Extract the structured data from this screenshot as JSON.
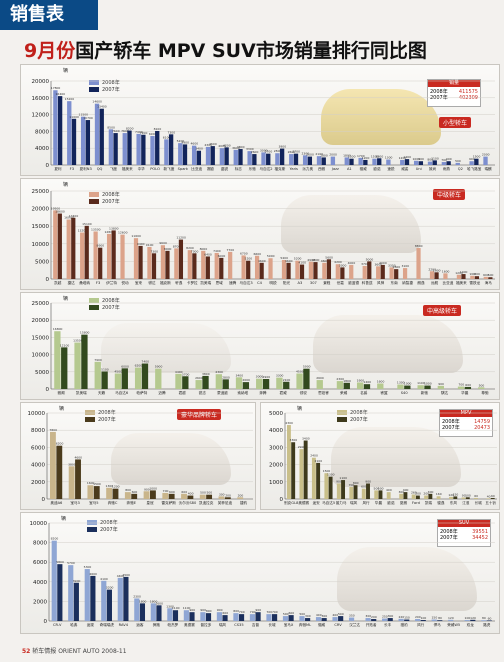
{
  "header": {
    "section_tag": "销售表",
    "title_red": "9月份",
    "title_rest": "国产轿车 MPV SUV市场销量排行同比图"
  },
  "footer": {
    "page_num": "52",
    "text": "轿车情报 ORIENT AUTO 2008-11"
  },
  "colors": {
    "y2008": "#7d8fcf",
    "y2007": "#12245a",
    "accent_red": "#c92a21",
    "tag_blue": "#0b4a86"
  },
  "legend": {
    "y2008": "2008年",
    "y2007": "2007年"
  },
  "axis_unit": "辆",
  "panels": {
    "small": {
      "badge": "小型轿车",
      "sales_box": {
        "title": "销量",
        "rows": [
          {
            "label": "2008年",
            "value": "411575"
          },
          {
            "label": "2007年",
            "value": "402309"
          }
        ]
      }
    },
    "compact": {
      "badge": "中级轿车"
    },
    "midlarge": {
      "badge": "中高级轿车"
    },
    "luxury": {
      "badge": "豪华品牌轿车"
    },
    "mpv": {
      "sales_box": {
        "title": "MPV",
        "rows": [
          {
            "label": "2008年",
            "value": "14759"
          },
          {
            "label": "2007年",
            "value": "20473"
          }
        ]
      }
    },
    "suv": {
      "sales_box": {
        "title": "SUV",
        "rows": [
          {
            "label": "2008年",
            "value": "39551"
          },
          {
            "label": "2007年",
            "value": "34452"
          }
        ]
      }
    }
  },
  "chart_data": [
    {
      "id": "small",
      "type": "bar",
      "ylim": [
        0,
        20000
      ],
      "yticks": [
        0,
        4000,
        8000,
        12000,
        16000,
        20000
      ],
      "categories": [
        "夏利",
        "F3",
        "夏利N3",
        "QQ",
        "飞度",
        "福美来",
        "中华",
        "POLO",
        "新飞度",
        "Spark",
        "比亚迪",
        "赛欧",
        "晶锐",
        "标志",
        "乐驰",
        "马自达2",
        "福克斯",
        "Yaris",
        "派力奥",
        "西雅",
        "Jazz",
        "A1",
        "骊威",
        "欧诺",
        "速锐",
        "威姿",
        "Uni",
        "致尚",
        "雨燕",
        "Q2",
        "哈飞路宝",
        "瑞麒"
      ],
      "series": [
        {
          "name": "2008年",
          "values": [
            17800,
            15200,
            11500,
            14600,
            8500,
            7600,
            7400,
            6900,
            6100,
            5200,
            4600,
            4300,
            4000,
            3600,
            3300,
            3000,
            2800,
            2600,
            2300,
            2100,
            2000,
            1800,
            1700,
            1500,
            1300,
            1200,
            1000,
            800,
            700,
            500,
            900,
            2000
          ]
        },
        {
          "name": "2007年",
          "values": [
            16400,
            11000,
            10700,
            13400,
            7600,
            8200,
            7200,
            8100,
            7300,
            4900,
            3400,
            4500,
            4200,
            3800,
            2600,
            2700,
            3900,
            2700,
            2000,
            1800,
            0,
            1500,
            1200,
            1600,
            0,
            1400,
            900,
            1100,
            900,
            0,
            1500,
            0
          ]
        }
      ]
    },
    {
      "id": "compact",
      "type": "bar",
      "ylim": [
        0,
        25000
      ],
      "yticks": [
        0,
        5000,
        10000,
        15000,
        20000,
        25000
      ],
      "categories": [
        "凯越",
        "捷达",
        "桑塔纳",
        "F3",
        "伊兰特",
        "悦动",
        "宝来",
        "骐达",
        "福克斯",
        "轩逸",
        "卡罗拉",
        "凯美瑞",
        "思域",
        "速腾",
        "马自达3",
        "C4",
        "明锐",
        "阳光",
        "A3",
        "307",
        "景程",
        "世嘉",
        "欧蓝德",
        "科鲁兹",
        "风神",
        "东南",
        "纳智捷",
        "朗逸",
        "远舰",
        "比亚迪",
        "福美来",
        "雪铁龙",
        "海马"
      ],
      "series": [
        {
          "name": "2008年",
          "values": [
            19500,
            16900,
            13200,
            13500,
            12800,
            12600,
            11600,
            9100,
            9600,
            8700,
            8200,
            8000,
            7400,
            7700,
            6700,
            6600,
            5900,
            5400,
            5200,
            4900,
            4600,
            4200,
            4000,
            3700,
            3600,
            3300,
            3100,
            8800,
            2200,
            1600,
            1200,
            900,
            600
          ]
        },
        {
          "name": "2007年",
          "values": [
            18600,
            17400,
            15100,
            8900,
            13800,
            0,
            9400,
            7300,
            8000,
            11200,
            7300,
            6400,
            6000,
            0,
            5200,
            4600,
            0,
            4600,
            4100,
            4800,
            5600,
            3300,
            0,
            5000,
            4000,
            2800,
            0,
            0,
            1900,
            0,
            1400,
            800,
            500
          ]
        }
      ]
    },
    {
      "id": "midlarge",
      "type": "bar",
      "ylim": [
        0,
        25000
      ],
      "yticks": [
        0,
        5000,
        10000,
        15000,
        20000,
        25000
      ],
      "categories": [
        "雅阁",
        "凯美瑞",
        "天籁",
        "马自达6",
        "帕萨特",
        "迈腾",
        "君越",
        "锐志",
        "蒙迪欧",
        "索纳塔",
        "奔腾",
        "君威",
        "领驭",
        "思铂睿",
        "荣威",
        "名爵",
        "睿翼",
        "S40",
        "新驰",
        "騏达",
        "华晨",
        "尊驰"
      ],
      "series": [
        {
          "name": "2008年",
          "values": [
            16800,
            13500,
            7900,
            4500,
            6200,
            5900,
            4400,
            2600,
            4300,
            3400,
            3000,
            3300,
            4500,
            2600,
            2300,
            1900,
            1600,
            1300,
            1100,
            900,
            700,
            500
          ]
        },
        {
          "name": "2007年",
          "values": [
            12100,
            15800,
            5100,
            6000,
            7400,
            0,
            3700,
            3800,
            2800,
            2000,
            2900,
            2100,
            5900,
            0,
            1800,
            1400,
            0,
            1000,
            1000,
            0,
            600,
            0
          ]
        }
      ]
    },
    {
      "id": "luxury",
      "type": "bar",
      "ylim": [
        0,
        10000
      ],
      "yticks": [
        0,
        2000,
        4000,
        6000,
        8000,
        10000
      ],
      "categories": [
        "奥迪A6",
        "宝马3",
        "宝马5",
        "奔驰C",
        "奔驰E",
        "皇冠",
        "雷克萨斯",
        "沃尔沃S80",
        "凯迪拉克",
        "英菲尼迪",
        "捷豹"
      ],
      "series": [
        {
          "name": "2008年",
          "values": [
            7800,
            3800,
            1600,
            1300,
            800,
            900,
            700,
            600,
            500,
            300,
            200
          ]
        },
        {
          "name": "2007年",
          "values": [
            6200,
            4600,
            1500,
            1200,
            600,
            1000,
            600,
            400,
            500,
            200,
            0
          ]
        }
      ]
    },
    {
      "id": "mpv",
      "type": "bar",
      "ylim": [
        0,
        5000
      ],
      "yticks": [
        0,
        1000,
        2000,
        3000,
        4000,
        5000
      ],
      "categories": [
        "别克GL8",
        "奥德赛",
        "途安",
        "马自达5",
        "普力马",
        "瑞风",
        "风行",
        "华晨",
        "欧诺",
        "夏朗",
        "Ford",
        "凯瑞",
        "骏逸",
        "东风",
        "江淮",
        "长城",
        "五十铃"
      ],
      "series": [
        {
          "name": "2008年",
          "values": [
            4300,
            2900,
            2400,
            1500,
            900,
            700,
            600,
            500,
            400,
            300,
            260,
            200,
            160,
            120,
            90,
            60,
            40
          ]
        },
        {
          "name": "2007年",
          "values": [
            3300,
            3400,
            2100,
            1300,
            1100,
            800,
            900,
            500,
            0,
            400,
            200,
            300,
            0,
            150,
            100,
            0,
            60
          ]
        }
      ]
    },
    {
      "id": "suv",
      "type": "bar",
      "ylim": [
        0,
        10000
      ],
      "yticks": [
        0,
        2000,
        4000,
        6000,
        8000,
        10000
      ],
      "categories": [
        "CR-V",
        "哈弗",
        "途观",
        "奇瑞瑞虎",
        "RAV4",
        "逍客",
        "狮跑",
        "帕杰罗",
        "奥德赛",
        "普拉多",
        "瑞风",
        "CS35",
        "吉普",
        "长城",
        "宝马X",
        "奔驰ML",
        "骊威",
        "CRV",
        "汉兰达",
        "开拓者",
        "长丰",
        "猎豹",
        "风行",
        "悍马",
        "荣威W5",
        "双龙",
        "路虎"
      ],
      "series": [
        {
          "name": "2008年",
          "values": [
            8200,
            5700,
            5300,
            4100,
            4400,
            2300,
            1800,
            1300,
            1100,
            900,
            900,
            800,
            700,
            700,
            500,
            500,
            400,
            400,
            350,
            300,
            250,
            220,
            200,
            150,
            120,
            100,
            80
          ]
        },
        {
          "name": "2007年",
          "values": [
            5800,
            3900,
            4600,
            3200,
            4500,
            1800,
            1600,
            1100,
            900,
            800,
            600,
            700,
            900,
            700,
            600,
            300,
            300,
            500,
            0,
            200,
            300,
            150,
            100,
            80,
            0,
            120,
            60
          ]
        }
      ]
    }
  ]
}
